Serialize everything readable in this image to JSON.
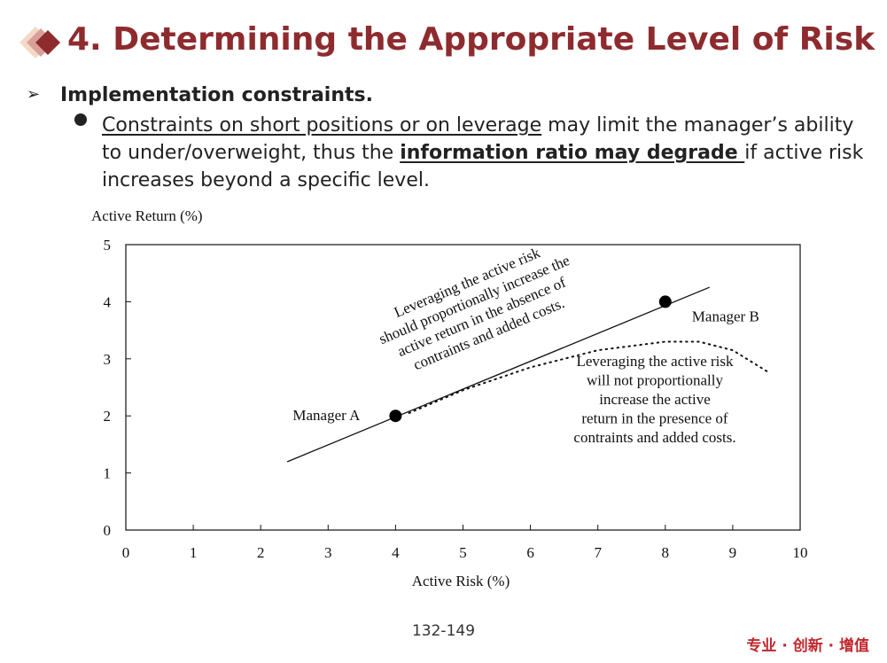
{
  "header": {
    "title": "4. Determining the Appropriate Level of Risk"
  },
  "bullets": [
    {
      "text": "Implementation constraints.",
      "sub": [
        {
          "parts": [
            "Constraints on short positions or on leverage",
            " may limit the manager’s ability to under/overweight, thus the ",
            "information ratio may degrade ",
            "if active risk increases beyond a specific level."
          ]
        }
      ]
    }
  ],
  "chart_data": {
    "type": "line",
    "xlabel": "Active Risk (%)",
    "ylabel": "Active Return (%)",
    "xlim": [
      0,
      10
    ],
    "xticks": [
      0,
      1,
      2,
      3,
      4,
      5,
      6,
      7,
      8,
      9,
      10
    ],
    "ylim": [
      0,
      5
    ],
    "yticks": [
      0,
      1,
      2,
      3,
      4,
      5
    ],
    "grid": false,
    "series": [
      {
        "style": "solid",
        "color": "#111111",
        "x": [
          2.4,
          8.65
        ],
        "values": [
          1.2,
          4.25
        ]
      },
      {
        "style": "dotted",
        "color": "#111111",
        "x": [
          4.2,
          5,
          6,
          7,
          8,
          8.5,
          9,
          9.55
        ],
        "values": [
          2.05,
          2.45,
          2.85,
          3.15,
          3.3,
          3.3,
          3.15,
          2.75
        ]
      },
      {
        "style": "markers",
        "color": "#000000",
        "x": [
          4,
          8
        ],
        "values": [
          2,
          4
        ],
        "labels": [
          "Manager A",
          "Manager B"
        ]
      }
    ],
    "annotations": [
      {
        "lines": [
          "Leveraging the active risk",
          "should proportionally increase the",
          "active return in the absence of",
          "contraints and added costs."
        ]
      },
      {
        "lines": [
          "Leveraging the active risk",
          "will not proportionally",
          "increase the active",
          "return in the presence of",
          "contraints and added costs."
        ]
      }
    ]
  },
  "footer": {
    "page": "132-149",
    "slogan": "专业 · 创新 · 增值"
  }
}
